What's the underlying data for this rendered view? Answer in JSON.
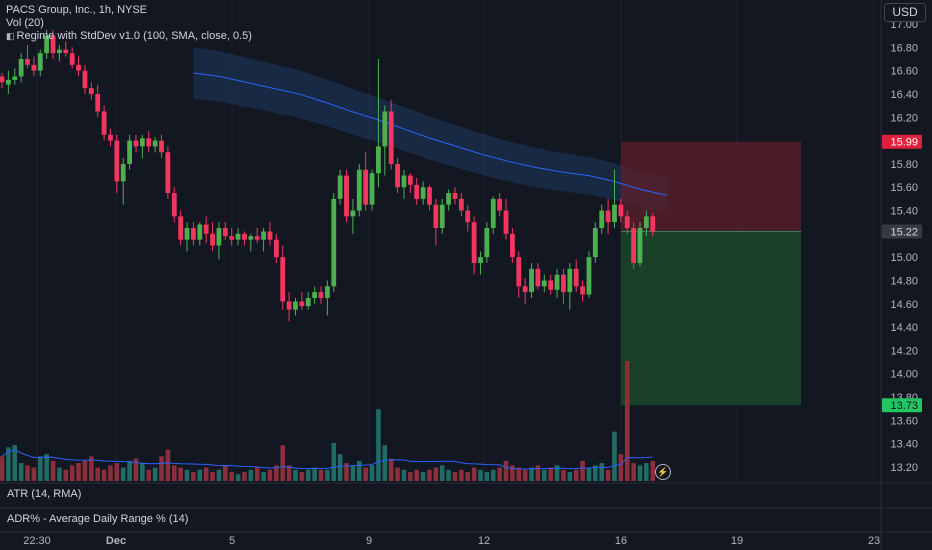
{
  "legend": {
    "title": "PACS Group, Inc., 1h, NYSE",
    "vol": "Vol (20)",
    "regime": "Regime with StdDev v1.0 (100, SMA, close, 0.5)"
  },
  "currency": "USD",
  "panes": {
    "atr": "ATR (14, RMA)",
    "adr": "ADR% - Average Daily Range % (14)"
  },
  "colors": {
    "background": "#131722",
    "up": "#26a69a",
    "up_candle": "#4caf50",
    "down": "#f23660",
    "sma": "#2962ff",
    "band": "#1e3a5f",
    "stop_zone": "#5c1f2b",
    "target_zone": "#1b4a2c",
    "vol_up": "#1f6b66",
    "vol_down": "#8c2f3c"
  },
  "price_labels": {
    "stop": "15.99",
    "last": "15.22",
    "target": "13.73"
  },
  "icons": {
    "live": "lightning-icon"
  },
  "chart_data": {
    "type": "candlestick",
    "y_axis": {
      "min": 13.2,
      "max": 17.0,
      "ticks": [
        "17.00",
        "16.80",
        "16.60",
        "16.40",
        "16.20",
        "16.00",
        "15.80",
        "15.60",
        "15.40",
        "15.20",
        "15.00",
        "14.80",
        "14.60",
        "14.40",
        "14.20",
        "14.00",
        "13.80",
        "13.60",
        "13.40",
        "13.20"
      ]
    },
    "x_ticks": [
      "22:30",
      "Dec",
      "5",
      "9",
      "12",
      "16",
      "19",
      "23"
    ],
    "candles": [
      [
        16.55,
        16.58,
        16.45,
        16.5
      ],
      [
        16.48,
        16.6,
        16.4,
        16.52
      ],
      [
        16.52,
        16.62,
        16.48,
        16.55
      ],
      [
        16.55,
        16.75,
        16.5,
        16.7
      ],
      [
        16.7,
        16.82,
        16.62,
        16.65
      ],
      [
        16.65,
        16.72,
        16.55,
        16.6
      ],
      [
        16.6,
        16.78,
        16.55,
        16.75
      ],
      [
        16.75,
        16.95,
        16.7,
        16.9
      ],
      [
        16.9,
        16.95,
        16.7,
        16.75
      ],
      [
        16.75,
        16.82,
        16.68,
        16.78
      ],
      [
        16.78,
        16.85,
        16.72,
        16.75
      ],
      [
        16.75,
        16.8,
        16.62,
        16.65
      ],
      [
        16.65,
        16.72,
        16.55,
        16.6
      ],
      [
        16.6,
        16.65,
        16.4,
        16.45
      ],
      [
        16.45,
        16.5,
        16.35,
        16.4
      ],
      [
        16.4,
        16.48,
        16.2,
        16.25
      ],
      [
        16.25,
        16.3,
        16.0,
        16.05
      ],
      [
        16.05,
        16.1,
        15.95,
        16.0
      ],
      [
        16.0,
        16.05,
        15.55,
        15.65
      ],
      [
        15.65,
        15.85,
        15.45,
        15.8
      ],
      [
        15.8,
        16.05,
        15.75,
        16.0
      ],
      [
        16.0,
        16.05,
        15.9,
        15.95
      ],
      [
        15.95,
        16.05,
        15.85,
        16.02
      ],
      [
        16.02,
        16.08,
        15.9,
        15.95
      ],
      [
        15.95,
        16.03,
        15.9,
        16.0
      ],
      [
        16.0,
        16.05,
        15.85,
        15.9
      ],
      [
        15.9,
        15.95,
        15.5,
        15.55
      ],
      [
        15.55,
        15.6,
        15.3,
        15.35
      ],
      [
        15.35,
        15.4,
        15.1,
        15.15
      ],
      [
        15.15,
        15.3,
        15.05,
        15.25
      ],
      [
        15.25,
        15.3,
        15.1,
        15.15
      ],
      [
        15.15,
        15.3,
        15.1,
        15.28
      ],
      [
        15.28,
        15.35,
        15.12,
        15.2
      ],
      [
        15.2,
        15.3,
        15.05,
        15.1
      ],
      [
        15.1,
        15.3,
        14.98,
        15.25
      ],
      [
        15.25,
        15.3,
        15.15,
        15.18
      ],
      [
        15.18,
        15.25,
        15.1,
        15.15
      ],
      [
        15.15,
        15.25,
        15.1,
        15.2
      ],
      [
        15.2,
        15.22,
        15.1,
        15.15
      ],
      [
        15.15,
        15.2,
        15.05,
        15.18
      ],
      [
        15.18,
        15.25,
        15.12,
        15.15
      ],
      [
        15.15,
        15.25,
        15.05,
        15.22
      ],
      [
        15.22,
        15.3,
        15.1,
        15.15
      ],
      [
        15.15,
        15.2,
        14.95,
        15.0
      ],
      [
        15.0,
        15.1,
        14.55,
        14.62
      ],
      [
        14.62,
        14.7,
        14.45,
        14.55
      ],
      [
        14.55,
        14.65,
        14.5,
        14.62
      ],
      [
        14.62,
        14.7,
        14.55,
        14.58
      ],
      [
        14.58,
        14.7,
        14.55,
        14.65
      ],
      [
        14.65,
        14.75,
        14.6,
        14.7
      ],
      [
        14.7,
        14.75,
        14.6,
        14.65
      ],
      [
        14.65,
        14.8,
        14.5,
        14.75
      ],
      [
        14.75,
        15.55,
        14.7,
        15.5
      ],
      [
        15.5,
        15.75,
        15.45,
        15.7
      ],
      [
        15.7,
        15.75,
        15.3,
        15.35
      ],
      [
        15.35,
        15.5,
        15.2,
        15.4
      ],
      [
        15.4,
        15.8,
        15.35,
        15.75
      ],
      [
        15.75,
        15.9,
        15.4,
        15.45
      ],
      [
        15.45,
        15.75,
        15.4,
        15.72
      ],
      [
        15.72,
        16.7,
        15.6,
        15.95
      ],
      [
        15.95,
        16.3,
        15.7,
        16.25
      ],
      [
        16.25,
        16.35,
        15.75,
        15.8
      ],
      [
        15.8,
        15.85,
        15.55,
        15.6
      ],
      [
        15.6,
        15.75,
        15.5,
        15.7
      ],
      [
        15.7,
        15.72,
        15.55,
        15.62
      ],
      [
        15.62,
        15.68,
        15.45,
        15.5
      ],
      [
        15.5,
        15.65,
        15.45,
        15.6
      ],
      [
        15.6,
        15.62,
        15.4,
        15.45
      ],
      [
        15.45,
        15.5,
        15.1,
        15.25
      ],
      [
        15.25,
        15.5,
        15.2,
        15.45
      ],
      [
        15.45,
        15.58,
        15.4,
        15.55
      ],
      [
        15.55,
        15.6,
        15.45,
        15.5
      ],
      [
        15.5,
        15.55,
        15.35,
        15.4
      ],
      [
        15.4,
        15.45,
        15.22,
        15.3
      ],
      [
        15.3,
        15.35,
        14.85,
        14.95
      ],
      [
        14.95,
        15.05,
        14.85,
        15.0
      ],
      [
        15.0,
        15.3,
        14.95,
        15.25
      ],
      [
        15.25,
        15.52,
        15.2,
        15.5
      ],
      [
        15.5,
        15.55,
        15.35,
        15.4
      ],
      [
        15.4,
        15.5,
        15.15,
        15.2
      ],
      [
        15.2,
        15.25,
        14.95,
        15.0
      ],
      [
        15.0,
        15.05,
        14.65,
        14.75
      ],
      [
        14.75,
        14.82,
        14.6,
        14.7
      ],
      [
        14.7,
        14.95,
        14.65,
        14.9
      ],
      [
        14.9,
        14.95,
        14.72,
        14.75
      ],
      [
        14.75,
        14.85,
        14.7,
        14.8
      ],
      [
        14.8,
        14.85,
        14.68,
        14.72
      ],
      [
        14.72,
        14.9,
        14.65,
        14.85
      ],
      [
        14.85,
        14.9,
        14.6,
        14.7
      ],
      [
        14.7,
        14.95,
        14.55,
        14.9
      ],
      [
        14.9,
        14.98,
        14.7,
        14.75
      ],
      [
        14.75,
        14.8,
        14.62,
        14.68
      ],
      [
        14.68,
        15.05,
        14.65,
        15.0
      ],
      [
        15.0,
        15.3,
        14.95,
        15.25
      ],
      [
        15.25,
        15.45,
        15.2,
        15.4
      ],
      [
        15.4,
        15.5,
        15.2,
        15.3
      ],
      [
        15.3,
        15.75,
        15.25,
        15.45
      ],
      [
        15.45,
        15.5,
        15.3,
        15.35
      ],
      [
        15.35,
        15.4,
        15.2,
        15.25
      ],
      [
        15.25,
        15.3,
        14.9,
        14.95
      ],
      [
        14.95,
        15.3,
        14.92,
        15.25
      ],
      [
        15.25,
        15.4,
        15.18,
        15.35
      ],
      [
        15.35,
        15.38,
        15.18,
        15.22
      ]
    ],
    "sma": [
      16.58,
      16.55,
      16.5,
      16.45,
      16.4,
      16.33,
      16.25,
      16.18,
      16.1,
      16.02,
      15.95,
      15.88,
      15.82,
      15.77,
      15.73,
      15.7,
      15.65,
      15.58,
      15.53
    ],
    "volume": [
      0.55,
      0.75,
      0.8,
      0.4,
      0.35,
      0.3,
      0.55,
      0.6,
      0.45,
      0.3,
      0.25,
      0.35,
      0.4,
      0.45,
      0.55,
      0.3,
      0.25,
      0.35,
      0.4,
      0.3,
      0.45,
      0.5,
      0.4,
      0.25,
      0.3,
      0.55,
      0.7,
      0.35,
      0.3,
      0.25,
      0.2,
      0.25,
      0.3,
      0.2,
      0.25,
      0.35,
      0.2,
      0.15,
      0.2,
      0.25,
      0.3,
      0.2,
      0.25,
      0.35,
      0.8,
      0.35,
      0.25,
      0.2,
      0.25,
      0.3,
      0.25,
      0.25,
      0.85,
      0.6,
      0.4,
      0.35,
      0.45,
      0.3,
      0.35,
      1.6,
      0.8,
      0.5,
      0.3,
      0.25,
      0.2,
      0.25,
      0.2,
      0.25,
      0.3,
      0.35,
      0.25,
      0.2,
      0.25,
      0.2,
      0.3,
      0.25,
      0.2,
      0.25,
      0.3,
      0.45,
      0.35,
      0.3,
      0.25,
      0.3,
      0.35,
      0.25,
      0.3,
      0.35,
      0.25,
      0.2,
      0.25,
      0.45,
      0.3,
      0.35,
      0.4,
      0.25,
      1.1,
      0.6,
      3.4,
      0.4,
      0.35,
      0.4,
      0.45
    ]
  }
}
